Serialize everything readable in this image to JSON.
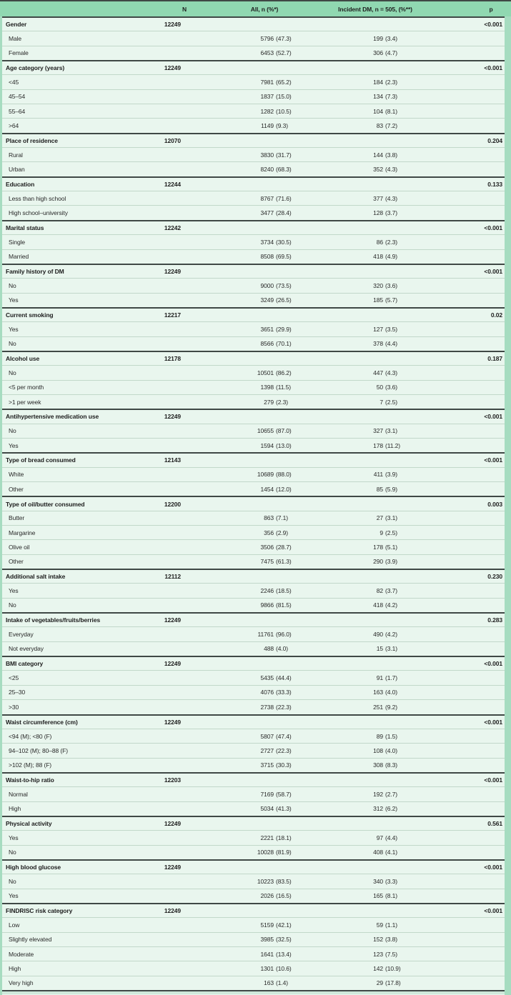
{
  "colors": {
    "header_green": "#90d8b1",
    "row_background": "#e9f6ee",
    "edge_green": "#a6dcc0",
    "dark_rule": "#3f4845",
    "light_rule": "#c2d8ca",
    "bottom_sliver": "#cfe9db",
    "text": "#1e1e1e"
  },
  "table": {
    "columns": {
      "label": "",
      "n": "N",
      "all": "All, n (%*)",
      "incident_dm": "Incident DM, n = 505, (%**)",
      "p": "p"
    },
    "groups": [
      {
        "label": "Gender",
        "n": "12249",
        "p": "<0.001",
        "rows": [
          {
            "label": "Male",
            "all": "5796 (47.3)",
            "dm": "199 (3.4)"
          },
          {
            "label": "Female",
            "all": "6453 (52.7)",
            "dm": "306 (4.7)"
          }
        ]
      },
      {
        "label": "Age category (years)",
        "n": "12249",
        "p": "<0.001",
        "rows": [
          {
            "label": "<45",
            "all": "7981 (65.2)",
            "dm": "184 (2.3)"
          },
          {
            "label": "45–54",
            "all": "1837 (15.0)",
            "dm": "134 (7.3)"
          },
          {
            "label": "55–64",
            "all": "1282 (10.5)",
            "dm": "104 (8.1)"
          },
          {
            "label": ">64",
            "all": "1149 (9.3)",
            "dm": "83 (7.2)"
          }
        ]
      },
      {
        "label": "Place of residence",
        "n": "12070",
        "p": "0.204",
        "rows": [
          {
            "label": "Rural",
            "all": "3830 (31.7)",
            "dm": "144 (3.8)"
          },
          {
            "label": "Urban",
            "all": "8240 (68.3)",
            "dm": "352 (4.3)"
          }
        ]
      },
      {
        "label": "Education",
        "n": "12244",
        "p": "0.133",
        "rows": [
          {
            "label": "Less than high school",
            "all": "8767 (71.6)",
            "dm": "377 (4.3)"
          },
          {
            "label": "High school–university",
            "all": "3477 (28.4)",
            "dm": "128 (3.7)"
          }
        ]
      },
      {
        "label": "Marital status",
        "n": "12242",
        "p": "<0.001",
        "rows": [
          {
            "label": "Single",
            "all": "3734 (30.5)",
            "dm": "86 (2.3)"
          },
          {
            "label": "Married",
            "all": "8508 (69.5)",
            "dm": "418 (4.9)"
          }
        ]
      },
      {
        "label": "Family history of DM",
        "n": "12249",
        "p": "<0.001",
        "rows": [
          {
            "label": "No",
            "all": "9000 (73.5)",
            "dm": "320 (3.6)"
          },
          {
            "label": "Yes",
            "all": "3249 (26.5)",
            "dm": "185 (5.7)"
          }
        ]
      },
      {
        "label": "Current smoking",
        "n": "12217",
        "p": "0.02",
        "rows": [
          {
            "label": "Yes",
            "all": "3651 (29.9)",
            "dm": "127 (3.5)"
          },
          {
            "label": "No",
            "all": "8566 (70.1)",
            "dm": "378 (4.4)"
          }
        ]
      },
      {
        "label": "Alcohol use",
        "n": "12178",
        "p": "0.187",
        "rows": [
          {
            "label": "No",
            "all": "10501 (86.2)",
            "dm": "447 (4.3)"
          },
          {
            "label": "<5 per month",
            "all": "1398 (11.5)",
            "dm": "50 (3.6)"
          },
          {
            "label": ">1 per week",
            "all": "279 (2.3)",
            "dm": "7 (2.5)"
          }
        ]
      },
      {
        "label": "Antihypertensive medication use",
        "n": "12249",
        "p": "<0.001",
        "rows": [
          {
            "label": "No",
            "all": "10655 (87.0)",
            "dm": "327 (3.1)"
          },
          {
            "label": "Yes",
            "all": "1594 (13.0)",
            "dm": "178 (11.2)"
          }
        ]
      },
      {
        "label": "Type of bread consumed",
        "n": "12143",
        "p": "<0.001",
        "rows": [
          {
            "label": "White",
            "all": "10689 (88.0)",
            "dm": "411 (3.9)"
          },
          {
            "label": "Other",
            "all": "1454 (12.0)",
            "dm": "85 (5.9)"
          }
        ]
      },
      {
        "label": "Type of oil/butter consumed",
        "n": "12200",
        "p": "0.003",
        "rows": [
          {
            "label": "Butter",
            "all": "863 (7.1)",
            "dm": "27 (3.1)"
          },
          {
            "label": "Margarine",
            "all": "356 (2.9)",
            "dm": "9 (2.5)"
          },
          {
            "label": "Olive oil",
            "all": "3506 (28.7)",
            "dm": "178 (5.1)"
          },
          {
            "label": "Other",
            "all": "7475 (61.3)",
            "dm": "290 (3.9)"
          }
        ]
      },
      {
        "label": "Additional salt intake",
        "n": "12112",
        "p": "0.230",
        "rows": [
          {
            "label": "Yes",
            "all": "2246 (18.5)",
            "dm": "82 (3.7)"
          },
          {
            "label": "No",
            "all": "9866 (81.5)",
            "dm": "418 (4.2)"
          }
        ]
      },
      {
        "label": "Intake of vegetables/fruits/berries",
        "n": "12249",
        "p": "0.283",
        "rows": [
          {
            "label": "Everyday",
            "all": "11761 (96.0)",
            "dm": "490 (4.2)"
          },
          {
            "label": "Not everyday",
            "all": "488 (4.0)",
            "dm": "15 (3.1)"
          }
        ]
      },
      {
        "label": "BMI category",
        "n": "12249",
        "p": "<0.001",
        "rows": [
          {
            "label": "<25",
            "all": "5435 (44.4)",
            "dm": "91 (1.7)"
          },
          {
            "label": "25–30",
            "all": "4076 (33.3)",
            "dm": "163 (4.0)"
          },
          {
            "label": ">30",
            "all": "2738 (22.3)",
            "dm": "251 (9.2)"
          }
        ]
      },
      {
        "label": "Waist circumference (cm)",
        "n": "12249",
        "p": "<0.001",
        "rows": [
          {
            "label": "<94 (M); <80 (F)",
            "all": "5807 (47.4)",
            "dm": "89 (1.5)"
          },
          {
            "label": "94–102 (M); 80–88 (F)",
            "all": "2727 (22.3)",
            "dm": "108 (4.0)"
          },
          {
            "label": ">102 (M); 88 (F)",
            "all": "3715 (30.3)",
            "dm": "308 (8.3)"
          }
        ]
      },
      {
        "label": "Waist-to-hip ratio",
        "n": "12203",
        "p": "<0.001",
        "rows": [
          {
            "label": "Normal",
            "all": "7169 (58.7)",
            "dm": "192 (2.7)"
          },
          {
            "label": "High",
            "all": "5034 (41.3)",
            "dm": "312 (6.2)"
          }
        ]
      },
      {
        "label": "Physical activity",
        "n": "12249",
        "p": "0.561",
        "rows": [
          {
            "label": "Yes",
            "all": "2221 (18.1)",
            "dm": "97 (4.4)"
          },
          {
            "label": "No",
            "all": "10028 (81.9)",
            "dm": "408 (4.1)"
          }
        ]
      },
      {
        "label": "High blood glucose",
        "n": "12249",
        "p": "<0.001",
        "rows": [
          {
            "label": "No",
            "all": "10223 (83.5)",
            "dm": "340 (3.3)"
          },
          {
            "label": "Yes",
            "all": "2026 (16.5)",
            "dm": "165 (8.1)"
          }
        ]
      },
      {
        "label": "FINDRISC risk category",
        "n": "12249",
        "p": "<0.001",
        "rows": [
          {
            "label": "Low",
            "all": "5159 (42.1)",
            "dm": "59 (1.1)"
          },
          {
            "label": "Slightly elevated",
            "all": "3985 (32.5)",
            "dm": "152 (3.8)"
          },
          {
            "label": "Moderate",
            "all": "1641 (13.4)",
            "dm": "123 (7.5)"
          },
          {
            "label": "High",
            "all": "1301 (10.6)",
            "dm": "142 (10.9)"
          },
          {
            "label": "Very high",
            "all": "163 (1.4)",
            "dm": "29 (17.8)"
          }
        ]
      }
    ]
  }
}
